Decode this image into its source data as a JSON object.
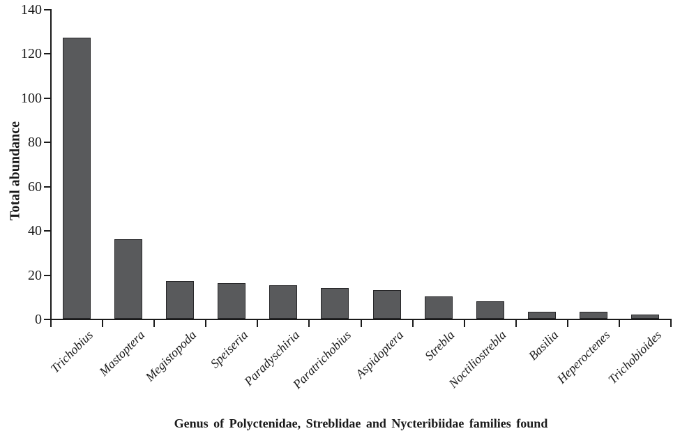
{
  "chart_data": {
    "type": "bar",
    "categories": [
      "Trichobius",
      "Mastoptera",
      "Megistopoda",
      "Speiseria",
      "Paradyschiria",
      "Paratrichobius",
      "Aspidoptera",
      "Strebla",
      "Noctiliostrebla",
      "Basilia",
      "Heperoctenes",
      "Trichobioides"
    ],
    "values": [
      127,
      36,
      17,
      16,
      15,
      14,
      13,
      10,
      8,
      3,
      3,
      2
    ],
    "title": "",
    "xlabel": "Genus of Polyctenidae, Streblidae and Nycteribiidae families found",
    "ylabel": "Total abundance",
    "ylim": [
      0,
      140
    ],
    "yticks": [
      0,
      20,
      40,
      60,
      80,
      100,
      120,
      140
    ],
    "grid": false,
    "legend": "none",
    "bar_color": "#595a5c",
    "bar_border_color": "#262628",
    "axis_color": "#1a1a1a",
    "text_color": "#1a1a1a",
    "background_color": "#ffffff"
  }
}
